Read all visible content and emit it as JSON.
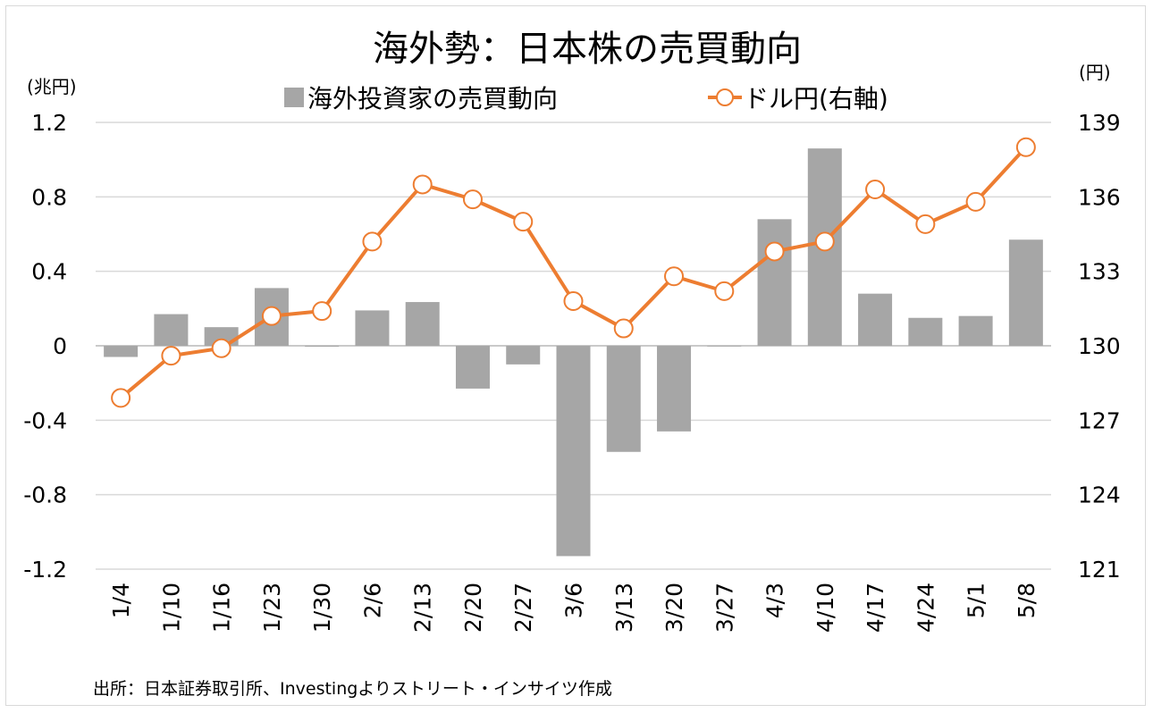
{
  "chart_data": {
    "type": "bar+line",
    "title": "海外勢：日本株の売買動向",
    "left_unit": "(兆円)",
    "right_unit": "(円)",
    "categories": [
      "1/4",
      "1/10",
      "1/16",
      "1/23",
      "1/30",
      "2/6",
      "2/13",
      "2/20",
      "2/27",
      "3/6",
      "3/13",
      "3/20",
      "3/27",
      "4/3",
      "4/10",
      "4/17",
      "4/24",
      "5/1",
      "5/8"
    ],
    "series": [
      {
        "name": "海外投資家の売買動向",
        "type": "bar",
        "axis": "left",
        "color": "#a6a6a6",
        "values": [
          -0.06,
          0.17,
          0.1,
          0.31,
          -0.005,
          0.19,
          0.235,
          -0.23,
          -0.1,
          -1.13,
          -0.57,
          -0.46,
          0.0,
          0.68,
          1.06,
          0.28,
          0.15,
          0.16,
          0.57
        ]
      },
      {
        "name": "ドル円(右軸)",
        "type": "line",
        "axis": "right",
        "color": "#ed7d31",
        "values": [
          127.9,
          129.6,
          129.9,
          131.2,
          131.4,
          134.2,
          136.5,
          135.9,
          135.0,
          131.8,
          130.7,
          132.8,
          132.2,
          133.8,
          134.2,
          136.3,
          134.9,
          135.8,
          138.0
        ]
      }
    ],
    "left_axis": {
      "ylim": [
        -1.2,
        1.2
      ],
      "ticks": [
        "1.2",
        "0.8",
        "0.4",
        "0",
        "-0.4",
        "-0.8",
        "-1.2"
      ]
    },
    "right_axis": {
      "ylim": [
        121,
        139
      ],
      "ticks": [
        "139",
        "136",
        "133",
        "130",
        "127",
        "124",
        "121"
      ]
    },
    "grid": true,
    "legend": "top-center",
    "source": "出所：日本証券取引所、Investingよりストリート・インサイツ作成"
  }
}
